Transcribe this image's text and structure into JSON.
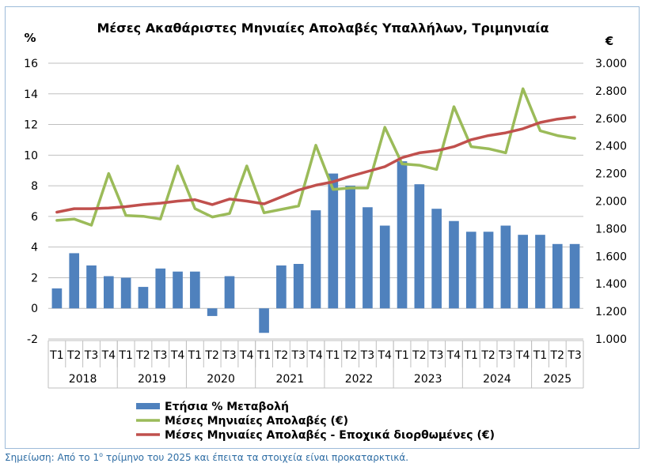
{
  "chart_data": {
    "type": "bar",
    "title": "Μέσες Ακαθάριστες Μηνιαίες Απολαβές Υπαλλήλων, Τριμηνιαία",
    "y_left_unit": "%",
    "y_right_unit": "€",
    "y_left_range": [
      -2,
      16
    ],
    "y_right_range": [
      1000,
      3000
    ],
    "y_left_ticks": [
      "-2",
      "0",
      "2",
      "4",
      "6",
      "8",
      "10",
      "12",
      "14",
      "16"
    ],
    "y_right_ticks": [
      "1.000",
      "1.200",
      "1.400",
      "1.600",
      "1.800",
      "2.000",
      "2.200",
      "2.400",
      "2.600",
      "2.800",
      "3.000"
    ],
    "years": [
      "2018",
      "2019",
      "2020",
      "2021",
      "2022",
      "2023",
      "2024",
      "2025"
    ],
    "categories": [
      {
        "q": "T1",
        "year": "2018"
      },
      {
        "q": "T2",
        "year": "2018"
      },
      {
        "q": "T3",
        "year": "2018"
      },
      {
        "q": "T4",
        "year": "2018"
      },
      {
        "q": "T1",
        "year": "2019"
      },
      {
        "q": "T2",
        "year": "2019"
      },
      {
        "q": "T3",
        "year": "2019"
      },
      {
        "q": "T4",
        "year": "2019"
      },
      {
        "q": "T1",
        "year": "2020"
      },
      {
        "q": "T2",
        "year": "2020"
      },
      {
        "q": "T3",
        "year": "2020"
      },
      {
        "q": "T4",
        "year": "2020"
      },
      {
        "q": "T1",
        "year": "2021"
      },
      {
        "q": "T2",
        "year": "2021"
      },
      {
        "q": "T3",
        "year": "2021"
      },
      {
        "q": "T4",
        "year": "2021"
      },
      {
        "q": "T1",
        "year": "2022"
      },
      {
        "q": "T2",
        "year": "2022"
      },
      {
        "q": "T3",
        "year": "2022"
      },
      {
        "q": "T4",
        "year": "2022"
      },
      {
        "q": "T1",
        "year": "2023"
      },
      {
        "q": "T2",
        "year": "2023"
      },
      {
        "q": "T3",
        "year": "2023"
      },
      {
        "q": "T4",
        "year": "2023"
      },
      {
        "q": "T1",
        "year": "2024"
      },
      {
        "q": "T2",
        "year": "2024"
      },
      {
        "q": "T3",
        "year": "2024"
      },
      {
        "q": "T4",
        "year": "2024"
      },
      {
        "q": "T1",
        "year": "2025"
      },
      {
        "q": "T2",
        "year": "2025"
      },
      {
        "q": "T3",
        "year": "2025"
      }
    ],
    "series": [
      {
        "name": "Ετήσια % Μεταβολή",
        "type": "bar",
        "axis": "left",
        "color": "#4f81bd",
        "values": [
          1.3,
          3.6,
          2.8,
          2.1,
          2.0,
          1.4,
          2.6,
          2.4,
          2.4,
          -0.5,
          2.1,
          0.0,
          -1.6,
          2.8,
          2.9,
          6.4,
          8.8,
          8.0,
          6.6,
          5.4,
          9.6,
          8.1,
          6.5,
          5.7,
          5.0,
          5.0,
          5.4,
          4.8,
          4.8,
          4.2,
          4.2
        ]
      },
      {
        "name": "Μέσες Μηνιαίες Απολαβές (€)",
        "type": "line",
        "axis": "right",
        "color": "#9bbb59",
        "values": [
          1860,
          1870,
          1825,
          2200,
          1895,
          1890,
          1870,
          2255,
          1945,
          1885,
          1910,
          2255,
          1915,
          1940,
          1965,
          2405,
          2085,
          2095,
          2095,
          2535,
          2270,
          2260,
          2230,
          2685,
          2395,
          2380,
          2350,
          2815,
          2510,
          2475,
          2455
        ]
      },
      {
        "name": "Μέσες Μηνιαίες Απολαβές - Εποχικά διορθωμένες (€)",
        "type": "line",
        "axis": "right",
        "color": "#c0504d",
        "values": [
          1920,
          1945,
          1945,
          1950,
          1960,
          1975,
          1985,
          2000,
          2010,
          1975,
          2015,
          2000,
          1980,
          2030,
          2080,
          2115,
          2140,
          2180,
          2215,
          2250,
          2315,
          2350,
          2365,
          2395,
          2445,
          2475,
          2495,
          2525,
          2570,
          2595,
          2610
        ]
      }
    ],
    "grid": "horizontal",
    "legend_position": "bottom"
  },
  "note": {
    "prefix": "Σημείωση: Από το 1",
    "sup": "ο",
    "suffix": " τρίμηνο του 2025 και έπειτα τα στοιχεία είναι προκαταρκτικά."
  }
}
